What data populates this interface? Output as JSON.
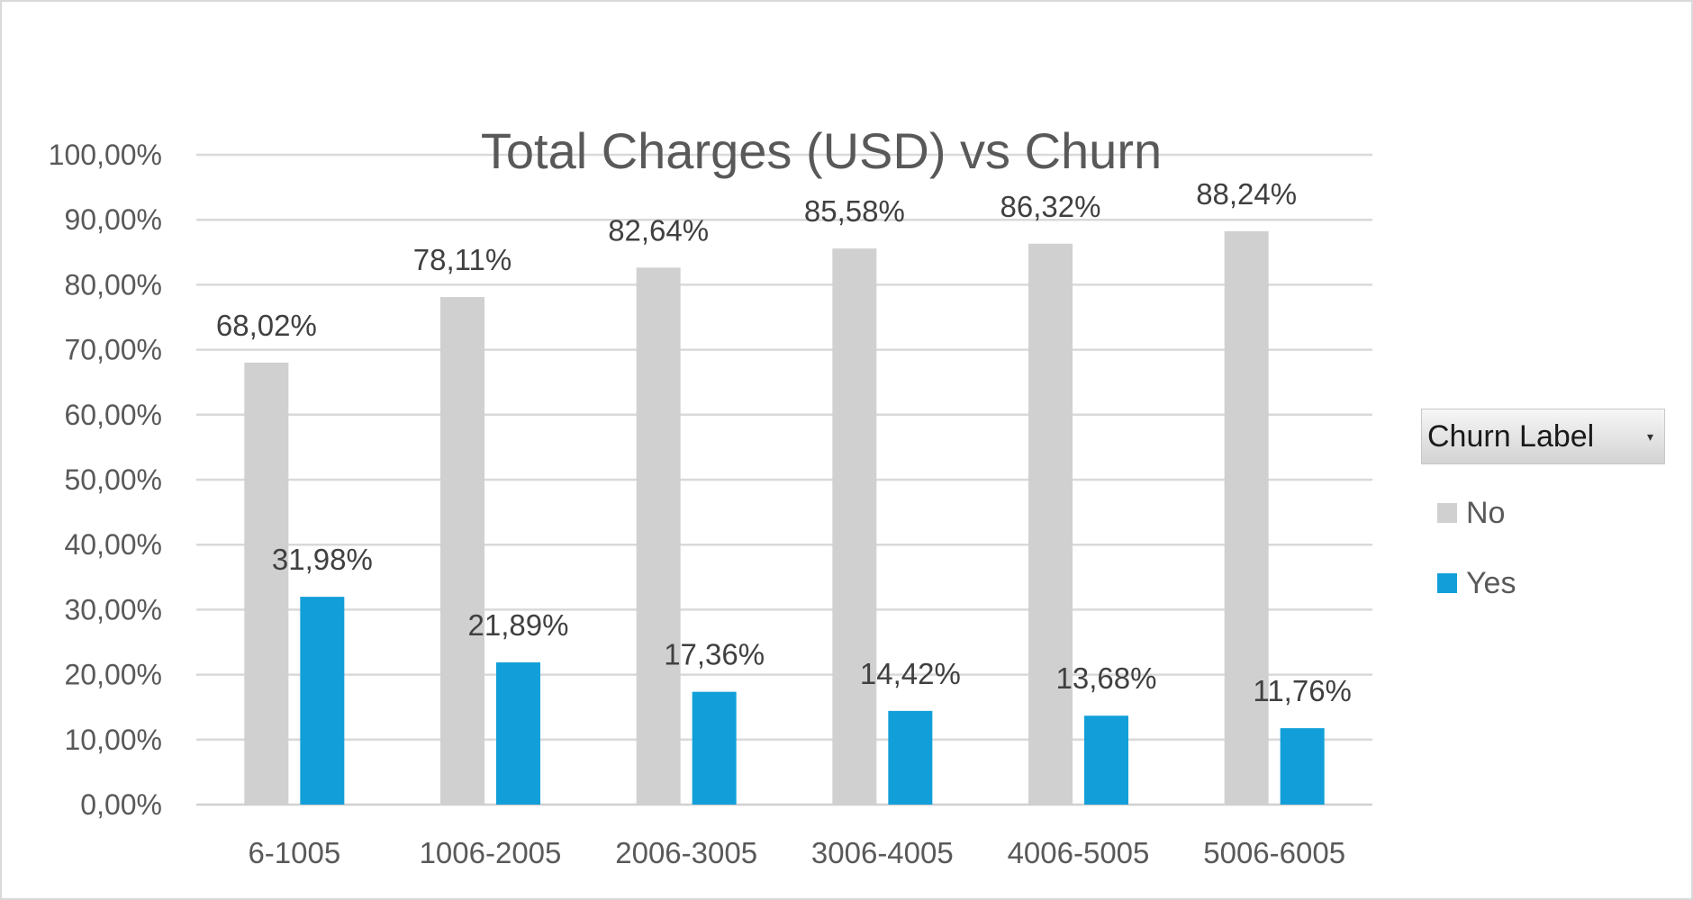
{
  "chart_data": {
    "type": "bar",
    "title": "Total Charges (USD) vs Churn",
    "categories": [
      "6-1005",
      "1006-2005",
      "2006-3005",
      "3006-4005",
      "4006-5005",
      "5006-6005"
    ],
    "series": [
      {
        "name": "No",
        "color": "#d0d0d0",
        "values": [
          68.02,
          78.11,
          82.64,
          85.58,
          86.32,
          88.24
        ],
        "labels": [
          "68,02%",
          "78,11%",
          "82,64%",
          "85,58%",
          "86,32%",
          "88,24%"
        ]
      },
      {
        "name": "Yes",
        "color": "#129fd9",
        "values": [
          31.98,
          21.89,
          17.36,
          14.42,
          13.68,
          11.76
        ],
        "labels": [
          "31,98%",
          "21,89%",
          "17,36%",
          "14,42%",
          "13,68%",
          "11,76%"
        ]
      }
    ],
    "ylim": [
      0,
      100
    ],
    "y_ticks": [
      "0,00%",
      "10,00%",
      "20,00%",
      "30,00%",
      "40,00%",
      "50,00%",
      "60,00%",
      "70,00%",
      "80,00%",
      "90,00%",
      "100,00%"
    ],
    "grid": true,
    "legend_position": "right"
  },
  "legend": {
    "title": "Churn Label",
    "dropdown_icon": "dropdown-arrow-icon"
  }
}
